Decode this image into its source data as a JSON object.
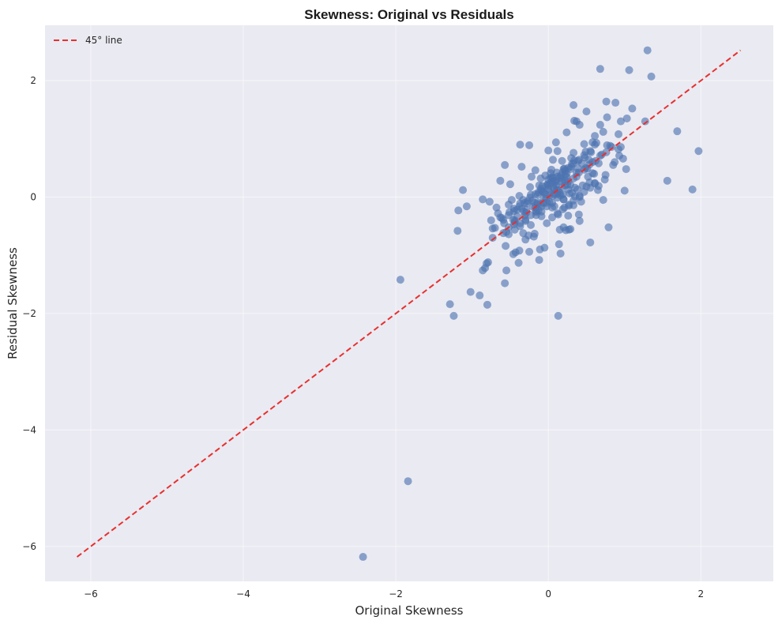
{
  "chart_data": {
    "type": "scatter",
    "title": "Skewness: Original vs Residuals",
    "xlabel": "Original Skewness",
    "ylabel": "Residual Skewness",
    "xlim": [
      -6.6,
      2.95
    ],
    "ylim": [
      -6.6,
      2.95
    ],
    "xticks": [
      -6,
      -4,
      -2,
      0,
      2
    ],
    "yticks": [
      -6,
      -4,
      -2,
      0,
      2
    ],
    "xtick_labels": [
      "−6",
      "−4",
      "−2",
      "0",
      "2"
    ],
    "ytick_labels": [
      "−6",
      "−4",
      "−2",
      "0",
      "2"
    ],
    "grid": true,
    "background": "#eaeaf2",
    "legend": {
      "placement": "top-left",
      "entries": [
        "45° line"
      ]
    },
    "series": [
      {
        "kind": "points",
        "color": "#4c72b0",
        "x": [
          -2.43,
          -1.84,
          -1.94,
          -1.29,
          -1.24,
          -1.02,
          -0.9,
          -0.8,
          1.3,
          0.68,
          1.06,
          1.35,
          0.76,
          0.88,
          0.33,
          1.1,
          0.37,
          0.77,
          1.03,
          1.27,
          0.5,
          0.34,
          0.95,
          0.68,
          0.41,
          0.72,
          0.58,
          1.69,
          0.61,
          0.24,
          0.1,
          -0.37,
          -0.25,
          0.0,
          0.92,
          1.97,
          0.87,
          0.95,
          0.98,
          0.66,
          0.3,
          0.44,
          0.21,
          0.35,
          0.58,
          0.27,
          0.49,
          1.0,
          0.13,
          0.16,
          1.56,
          -0.12,
          1.89,
          -1.12,
          -0.57,
          -1.19,
          -1.07,
          -0.57,
          -0.55,
          -0.81,
          -0.39,
          -0.73,
          0.79,
          -1.18,
          -0.86,
          -0.79,
          -0.56,
          -0.75,
          -0.63,
          -0.52,
          -0.45,
          -0.37,
          0.55,
          -0.86,
          -0.77,
          -0.43,
          -0.46,
          -0.38,
          -0.3,
          -0.11,
          -0.05,
          0.23,
          0.2,
          0.41,
          0.54,
          0.12,
          0.35,
          0.26,
          1.02,
          0.56,
          0.15,
          -0.83,
          -0.25,
          -0.19,
          0.14,
          -0.18,
          -0.41,
          -0.33,
          -0.5,
          -0.63,
          -0.1,
          0.16,
          0.03,
          -0.09,
          0.33,
          -0.7,
          -0.55,
          -0.44,
          0.08,
          0.21,
          0.66,
          0.4,
          0.0,
          -0.35,
          -0.17,
          0.25,
          -0.22,
          0.06,
          0.48,
          0.31,
          -0.58,
          -0.44,
          -0.29,
          -0.14,
          0.02,
          0.18,
          0.33,
          0.47,
          0.62,
          0.76,
          -0.51,
          -0.37,
          -0.23,
          -0.08,
          0.06,
          0.2,
          0.34,
          0.49,
          0.63,
          0.77,
          -0.59,
          -0.45,
          -0.31,
          -0.17,
          -0.03,
          0.11,
          0.26,
          0.4,
          0.54,
          0.68,
          -0.66,
          -0.52,
          -0.38,
          -0.24,
          -0.1,
          0.04,
          0.18,
          0.33,
          0.47,
          0.61,
          -0.73,
          -0.59,
          -0.45,
          -0.31,
          -0.17,
          -0.02,
          0.12,
          0.26,
          0.4,
          0.55,
          -0.46,
          -0.32,
          -0.18,
          -0.04,
          0.1,
          0.24,
          0.39,
          0.53,
          -0.52,
          -0.38,
          -0.24,
          -0.1,
          0.05,
          0.19,
          0.33,
          0.47,
          -0.41,
          -0.27,
          -0.13,
          0.02,
          0.16,
          0.3,
          -0.35,
          -0.21,
          -0.06,
          0.08,
          0.22,
          -0.28,
          -0.14,
          0.0,
          0.15,
          0.29,
          -0.2,
          -0.06,
          0.08,
          0.22,
          0.37,
          -0.13,
          0.01,
          0.15,
          0.29,
          -0.06,
          0.08,
          0.22,
          0.37,
          0.51,
          0.05,
          0.19,
          0.33,
          0.47,
          0.61,
          0.75,
          0.12,
          0.27,
          0.41,
          0.55,
          -0.02,
          0.13,
          0.27,
          0.41,
          -0.09,
          0.05,
          0.19,
          -0.16,
          -0.02,
          0.12,
          0.26,
          -0.23,
          -0.09,
          0.05,
          0.2,
          -0.3,
          -0.16,
          -0.02,
          0.12,
          -0.37,
          -0.23,
          -0.09,
          -0.44,
          -0.3,
          -0.16,
          0.07,
          0.18,
          0.03,
          -0.04,
          0.11,
          0.22,
          -0.01,
          0.09,
          0.17,
          0.24,
          0.02,
          0.13,
          -0.07,
          0.06,
          0.2,
          0.31,
          -0.12,
          0.0,
          0.1,
          0.28,
          0.38,
          0.45,
          0.52,
          0.43,
          0.6,
          0.72,
          0.85,
          0.65,
          0.7,
          0.81,
          0.92,
          0.74,
          0.58,
          0.5,
          0.83,
          0.93,
          0.29,
          -0.26,
          -0.33,
          -0.61,
          -0.68,
          -0.48,
          -0.14,
          0.05,
          -0.29,
          0.39,
          0.61,
          -0.52
        ],
        "y": [
          -6.18,
          -4.88,
          -1.42,
          -1.84,
          -2.04,
          -1.63,
          -1.69,
          -1.85,
          2.52,
          2.2,
          2.18,
          2.07,
          1.64,
          1.62,
          1.58,
          1.52,
          1.3,
          1.37,
          1.35,
          1.3,
          1.47,
          1.31,
          1.3,
          1.24,
          1.24,
          1.12,
          0.94,
          1.13,
          0.9,
          1.11,
          0.94,
          0.9,
          0.89,
          0.8,
          0.82,
          0.79,
          0.6,
          0.86,
          0.66,
          0.58,
          0.67,
          0.58,
          0.49,
          0.16,
          0.6,
          -0.56,
          0.5,
          0.11,
          -2.04,
          -0.97,
          0.28,
          -1.08,
          0.13,
          0.12,
          0.55,
          -0.58,
          -0.16,
          -1.48,
          -1.26,
          -1.14,
          -1.13,
          -0.7,
          -0.52,
          -0.23,
          -1.26,
          -1.12,
          -0.84,
          -0.4,
          -0.35,
          -0.52,
          -0.2,
          -0.5,
          -0.78,
          -0.04,
          -0.08,
          -0.95,
          -0.98,
          -0.92,
          -0.73,
          -0.9,
          -0.87,
          -0.57,
          -0.52,
          -0.41,
          0.25,
          0.79,
          0.01,
          -0.32,
          0.48,
          0.77,
          -0.56,
          -1.22,
          -0.94,
          -0.68,
          -0.81,
          -0.63,
          -0.33,
          -0.05,
          0.22,
          0.28,
          -0.12,
          0.03,
          0.41,
          0.11,
          -0.14,
          -0.53,
          -0.6,
          -0.43,
          -0.16,
          -0.18,
          0.19,
          -0.3,
          0.3,
          0.52,
          0.46,
          0.21,
          0.35,
          0.64,
          0.68,
          0.57,
          -0.45,
          -0.4,
          -0.27,
          -0.12,
          0.03,
          0.18,
          0.32,
          0.47,
          0.62,
          0.77,
          -0.26,
          -0.11,
          0.04,
          0.19,
          0.33,
          0.48,
          0.63,
          0.78,
          0.93,
          0.89,
          -0.62,
          -0.47,
          -0.32,
          -0.18,
          -0.03,
          0.12,
          0.27,
          0.42,
          0.56,
          0.71,
          -0.28,
          -0.13,
          0.02,
          0.17,
          0.32,
          0.47,
          0.62,
          0.76,
          0.91,
          1.05,
          -0.54,
          -0.39,
          -0.24,
          -0.1,
          0.05,
          0.2,
          0.35,
          0.5,
          0.64,
          0.79,
          -0.39,
          -0.25,
          -0.1,
          0.05,
          0.2,
          0.34,
          0.49,
          0.64,
          -0.31,
          -0.16,
          -0.01,
          0.14,
          0.28,
          0.43,
          0.58,
          0.72,
          -0.22,
          -0.07,
          0.08,
          0.23,
          0.37,
          0.52,
          -0.2,
          -0.06,
          0.09,
          0.24,
          0.39,
          -0.11,
          0.04,
          0.19,
          0.33,
          0.48,
          -0.17,
          -0.02,
          0.13,
          0.28,
          0.42,
          -0.23,
          -0.08,
          0.07,
          0.21,
          -0.1,
          0.05,
          0.2,
          0.35,
          0.49,
          -0.35,
          -0.21,
          -0.06,
          0.09,
          0.24,
          0.38,
          -0.28,
          -0.13,
          0.02,
          0.16,
          -0.45,
          -0.3,
          -0.15,
          0.0,
          -0.25,
          -0.1,
          0.05,
          -0.31,
          -0.16,
          -0.01,
          0.13,
          -0.48,
          -0.33,
          -0.18,
          -0.04,
          -0.39,
          -0.24,
          -0.1,
          0.05,
          -0.45,
          -0.31,
          -0.16,
          -0.56,
          -0.41,
          -0.26,
          0.15,
          0.26,
          0.33,
          0.37,
          0.42,
          0.45,
          0.22,
          0.28,
          0.31,
          0.4,
          0.07,
          0.12,
          0.09,
          0.02,
          -0.04,
          0.07,
          0.2,
          0.14,
          0.26,
          0.06,
          0.13,
          0.2,
          0.35,
          -0.08,
          0.4,
          -0.05,
          0.55,
          0.12,
          0.73,
          0.88,
          1.08,
          0.3,
          0.41,
          0.18,
          0.86,
          0.71,
          -0.55,
          -0.66,
          -0.62,
          -0.36,
          -0.18,
          -0.05,
          -0.09,
          0.34,
          -0.22,
          0.62,
          0.23,
          -0.64
        ]
      },
      {
        "kind": "line",
        "name": "45° line",
        "color": "#e8302e",
        "dashed": true,
        "x": [
          -6.18,
          2.52
        ],
        "y": [
          -6.18,
          2.52
        ]
      }
    ]
  }
}
